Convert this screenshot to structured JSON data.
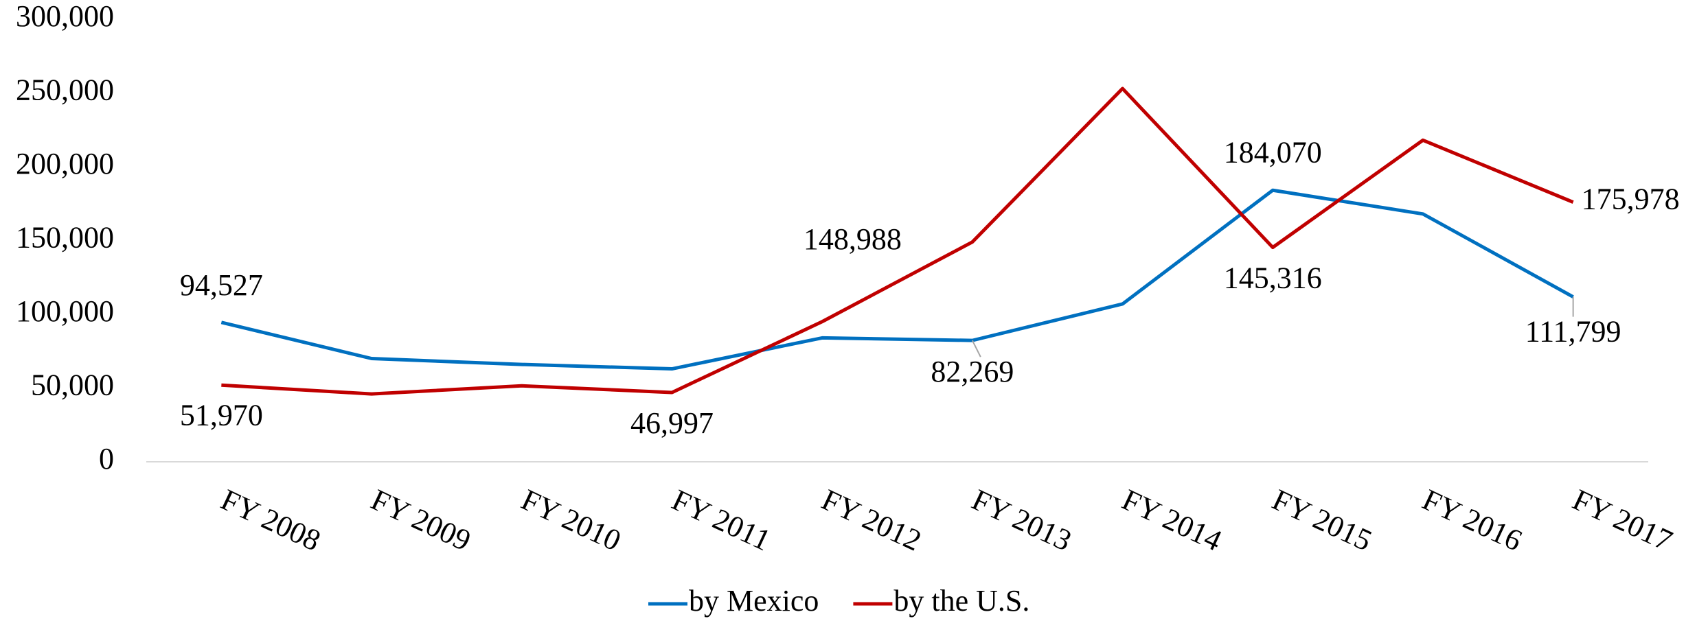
{
  "chart_data": {
    "type": "line",
    "categories": [
      "FY 2008",
      "FY 2009",
      "FY 2010",
      "FY 2011",
      "FY 2012",
      "FY 2013",
      "FY 2014",
      "FY 2015",
      "FY 2016",
      "FY 2017"
    ],
    "series": [
      {
        "name": "by Mexico",
        "color": "#0070c0",
        "values": [
          94527,
          70000,
          66000,
          63000,
          84000,
          82269,
          107000,
          184070,
          168000,
          111799
        ],
        "value_labels": [
          "94,527",
          null,
          null,
          null,
          null,
          "82,269",
          null,
          "184,070",
          null,
          "111,799"
        ]
      },
      {
        "name": "by the U.S.",
        "color": "#c00000",
        "values": [
          51970,
          46000,
          51500,
          46997,
          95000,
          148988,
          253000,
          145316,
          218000,
          175978
        ],
        "value_labels": [
          "51,970",
          null,
          null,
          "46,997",
          null,
          "148,988",
          null,
          "145,316",
          null,
          "175,978"
        ]
      }
    ],
    "ylim": [
      0,
      300000
    ],
    "yticks": [
      0,
      {
        "value": 50000,
        "label": "50,000"
      },
      {
        "value": 100000,
        "label": "100,000"
      },
      {
        "value": 150000,
        "label": "150,000"
      },
      {
        "value": 200000,
        "label": "200,000"
      },
      {
        "value": 250000,
        "label": "250,000"
      },
      {
        "value": 300000,
        "label": "300,000"
      }
    ],
    "grid": false,
    "legend": "bottom"
  }
}
